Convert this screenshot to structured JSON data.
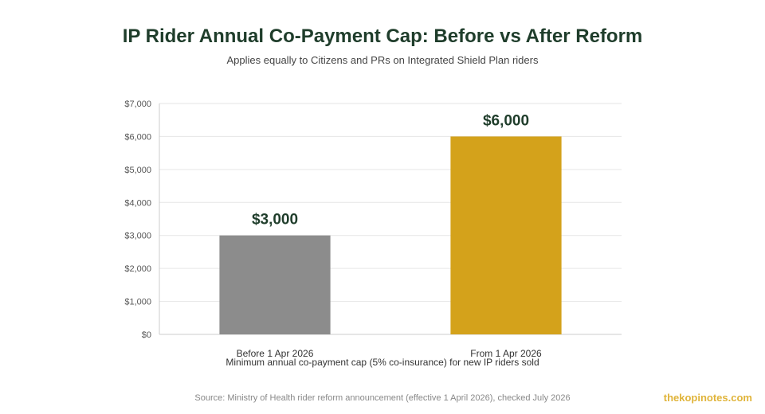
{
  "chart_data": {
    "type": "bar",
    "title": "IP Rider Annual Co-Payment Cap: Before vs After Reform",
    "subtitle": "Applies equally to Citizens and PRs on Integrated Shield Plan riders",
    "categories": [
      "Before 1 Apr 2026",
      "From 1 Apr 2026"
    ],
    "values": [
      3000,
      6000
    ],
    "data_labels": [
      "$3,000",
      "$6,000"
    ],
    "bar_colors": [
      "#8c8c8c",
      "#d4a21b"
    ],
    "xlabel": "Minimum annual co-payment cap (5% co-insurance) for new IP riders sold",
    "ylabel": "",
    "ylim": [
      0,
      7000
    ],
    "yticks": [
      0,
      1000,
      2000,
      3000,
      4000,
      5000,
      6000,
      7000
    ],
    "ytick_labels": [
      "$0",
      "$1,000",
      "$2,000",
      "$3,000",
      "$4,000",
      "$5,000",
      "$6,000",
      "$7,000"
    ],
    "grid": true
  },
  "footer": {
    "source": "Source: Ministry of Health rider reform announcement (effective 1 April 2026), checked July 2026",
    "brand": "thekopinotes.com"
  },
  "colors": {
    "title": "#1f3d2b",
    "data_label": "#1f3d2b",
    "grid": "#e6e6e6",
    "axis": "#cccccc",
    "brand": "#e0b43a"
  }
}
